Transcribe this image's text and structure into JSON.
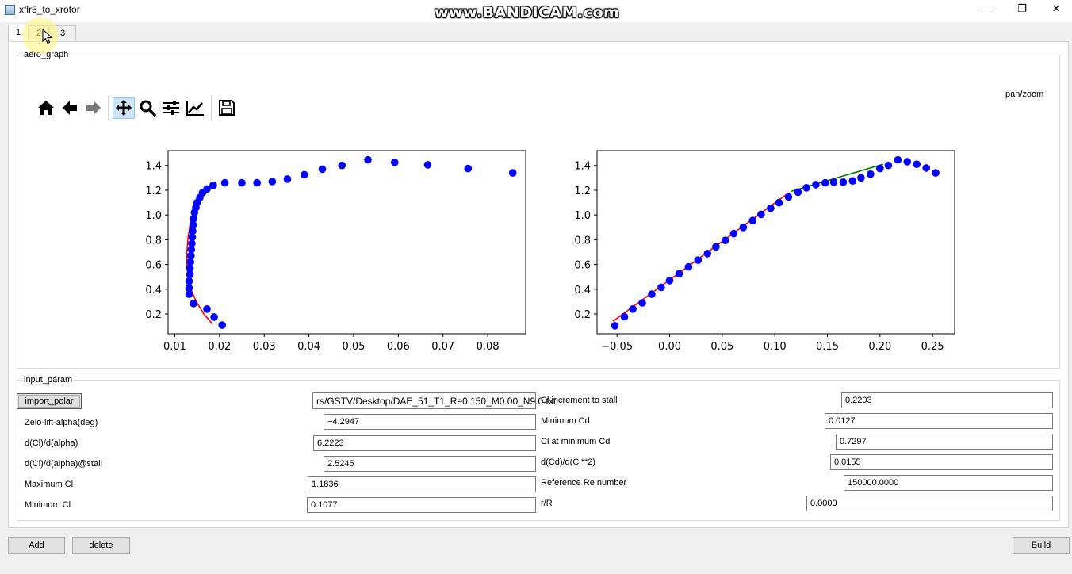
{
  "window": {
    "title": "xflr5_to_xrotor",
    "watermark": "www.BANDICAM.com",
    "controls": {
      "minimize": "—",
      "maximize": "❐",
      "close": "✕"
    }
  },
  "tabs": [
    {
      "label": "1",
      "active": true
    },
    {
      "label": "2",
      "active": false
    },
    {
      "label": "3",
      "active": false
    }
  ],
  "aero_graph": {
    "group_title": "aero_graph",
    "mode_label": "pan/zoom",
    "toolbar": [
      {
        "icon": "home-icon",
        "active": false
      },
      {
        "icon": "back-arrow-icon",
        "active": false
      },
      {
        "icon": "forward-arrow-icon",
        "active": false
      },
      {
        "icon": "pan-move-icon",
        "active": true
      },
      {
        "icon": "zoom-magnifier-icon",
        "active": false
      },
      {
        "icon": "configure-subplots-icon",
        "active": false
      },
      {
        "icon": "edit-axis-icon",
        "active": false
      },
      {
        "icon": "save-floppy-icon",
        "active": false
      }
    ]
  },
  "chart_data": [
    {
      "type": "scatter",
      "title": "",
      "xlabel": "",
      "ylabel": "",
      "xlim": [
        0.0085,
        0.0885
      ],
      "ylim": [
        0.04,
        1.52
      ],
      "xticks": [
        "0.01",
        "0.02",
        "0.03",
        "0.04",
        "0.05",
        "0.06",
        "0.07",
        "0.08"
      ],
      "yticks": [
        "0.2",
        "0.4",
        "0.6",
        "0.8",
        "1.0",
        "1.2",
        "1.4"
      ],
      "grid": false,
      "series": [
        {
          "kind": "points",
          "color": "#0000ff",
          "points": [
            [
              0.0206,
              0.11
            ],
            [
              0.0188,
              0.175
            ],
            [
              0.0172,
              0.24
            ],
            [
              0.0142,
              0.285
            ],
            [
              0.0132,
              0.36
            ],
            [
              0.0132,
              0.41
            ],
            [
              0.0132,
              0.465
            ],
            [
              0.0134,
              0.52
            ],
            [
              0.0134,
              0.57
            ],
            [
              0.0135,
              0.62
            ],
            [
              0.0136,
              0.67
            ],
            [
              0.0137,
              0.72
            ],
            [
              0.0138,
              0.77
            ],
            [
              0.0139,
              0.82
            ],
            [
              0.014,
              0.87
            ],
            [
              0.0141,
              0.92
            ],
            [
              0.0142,
              0.97
            ],
            [
              0.0144,
              1.02
            ],
            [
              0.0147,
              1.06
            ],
            [
              0.015,
              1.1
            ],
            [
              0.0156,
              1.14
            ],
            [
              0.0162,
              1.18
            ],
            [
              0.0172,
              1.21
            ],
            [
              0.0186,
              1.24
            ],
            [
              0.0212,
              1.26
            ],
            [
              0.025,
              1.26
            ],
            [
              0.0284,
              1.26
            ],
            [
              0.0318,
              1.27
            ],
            [
              0.0352,
              1.29
            ],
            [
              0.039,
              1.325
            ],
            [
              0.043,
              1.37
            ],
            [
              0.0474,
              1.4
            ],
            [
              0.0532,
              1.445
            ],
            [
              0.0592,
              1.425
            ],
            [
              0.0666,
              1.405
            ],
            [
              0.0756,
              1.375
            ],
            [
              0.0856,
              1.34
            ]
          ]
        },
        {
          "kind": "line",
          "color": "#ff0000",
          "points": [
            [
              0.0184,
              0.12
            ],
            [
              0.0165,
              0.2
            ],
            [
              0.0148,
              0.3
            ],
            [
              0.0136,
              0.4
            ],
            [
              0.0129,
              0.5
            ],
            [
              0.0127,
              0.6
            ],
            [
              0.0127,
              0.7
            ],
            [
              0.0129,
              0.8
            ],
            [
              0.0133,
              0.9
            ],
            [
              0.0139,
              1.0
            ],
            [
              0.0148,
              1.1
            ],
            [
              0.0158,
              1.18
            ]
          ]
        }
      ]
    },
    {
      "type": "scatter",
      "title": "",
      "xlabel": "",
      "ylabel": "",
      "xlim": [
        -0.069,
        0.271
      ],
      "ylim": [
        0.04,
        1.52
      ],
      "xticks": [
        "−0.05",
        "0.00",
        "0.05",
        "0.10",
        "0.15",
        "0.20",
        "0.25"
      ],
      "yticks": [
        "0.2",
        "0.4",
        "0.6",
        "0.8",
        "1.0",
        "1.2",
        "1.4"
      ],
      "grid": false,
      "series": [
        {
          "kind": "points",
          "color": "#0000ff",
          "points": [
            [
              -0.052,
              0.105
            ],
            [
              -0.043,
              0.178
            ],
            [
              -0.035,
              0.24
            ],
            [
              -0.026,
              0.29
            ],
            [
              -0.017,
              0.36
            ],
            [
              -0.008,
              0.415
            ],
            [
              0.0,
              0.47
            ],
            [
              0.009,
              0.525
            ],
            [
              0.018,
              0.58
            ],
            [
              0.027,
              0.635
            ],
            [
              0.036,
              0.688
            ],
            [
              0.044,
              0.743
            ],
            [
              0.053,
              0.795
            ],
            [
              0.061,
              0.85
            ],
            [
              0.07,
              0.9
            ],
            [
              0.079,
              0.955
            ],
            [
              0.087,
              1.005
            ],
            [
              0.096,
              1.055
            ],
            [
              0.104,
              1.1
            ],
            [
              0.113,
              1.145
            ],
            [
              0.122,
              1.185
            ],
            [
              0.13,
              1.22
            ],
            [
              0.139,
              1.245
            ],
            [
              0.148,
              1.26
            ],
            [
              0.156,
              1.265
            ],
            [
              0.165,
              1.265
            ],
            [
              0.174,
              1.275
            ],
            [
              0.182,
              1.3
            ],
            [
              0.191,
              1.33
            ],
            [
              0.2,
              1.375
            ],
            [
              0.208,
              1.4
            ],
            [
              0.217,
              1.445
            ],
            [
              0.226,
              1.43
            ],
            [
              0.235,
              1.41
            ],
            [
              0.244,
              1.38
            ],
            [
              0.253,
              1.34
            ]
          ]
        },
        {
          "kind": "line",
          "color": "#ff0000",
          "points": [
            [
              -0.054,
              0.14
            ],
            [
              0.113,
              1.178
            ]
          ]
        },
        {
          "kind": "line",
          "color": "#008000",
          "points": [
            [
              0.115,
              1.19
            ],
            [
              0.203,
              1.41
            ]
          ]
        }
      ]
    }
  ],
  "input_param": {
    "group_title": "input_param",
    "import_button": "import_polar",
    "file_path": "rs/GSTV/Desktop/DAE_51_T1_Re0.150_M0.00_N9.0.txt",
    "left": [
      {
        "label": "Zelo-lift-alpha(deg)",
        "value": "−4.2947"
      },
      {
        "label": " d(Cl)/d(alpha)",
        "value": "6.2223"
      },
      {
        "label": "d(Cl)/d(alpha)@stall",
        "value": "2.5245"
      },
      {
        "label": "Maximum Cl",
        "value": "1.1836"
      },
      {
        "label": "Minimum Cl",
        "value": "0.1077"
      }
    ],
    "right": [
      {
        "label": "Cl increment to stall",
        "value": "0.2203"
      },
      {
        "label": "Minimum Cd",
        "value": "0.0127"
      },
      {
        "label": "Cl at minimum Cd",
        "value": "0.7297"
      },
      {
        "label": "d(Cd)/d(Cl**2)",
        "value": "0.0155"
      },
      {
        "label": "Reference Re number",
        "value": "150000.0000"
      },
      {
        "label": "r/R",
        "value": "0.0000"
      }
    ]
  },
  "bottom_buttons": {
    "add": "Add",
    "delete": "delete",
    "build": "Build"
  }
}
